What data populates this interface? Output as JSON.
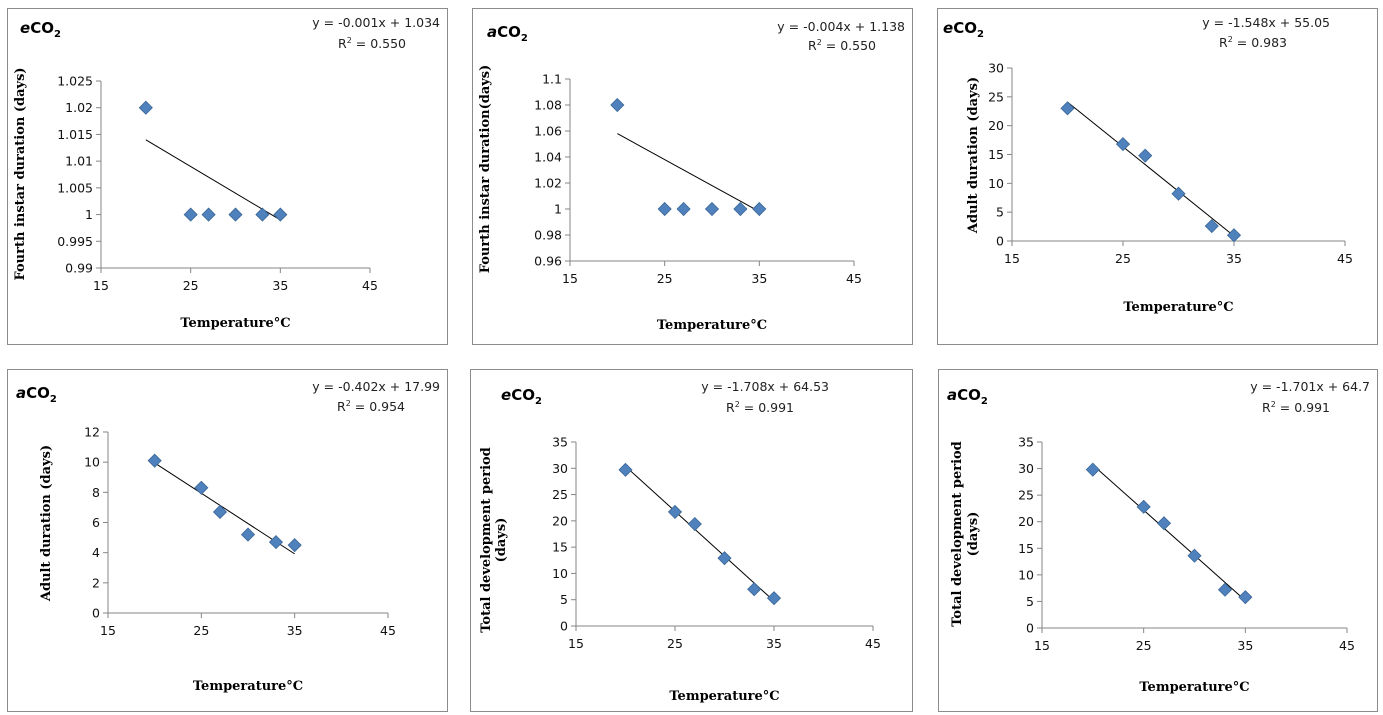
{
  "chart_data": [
    {
      "type": "scatter",
      "title_prefix": "e",
      "title_main": "CO",
      "title_sub": "2",
      "equation": "y = -0.001x + 1.034",
      "r2_label": "R",
      "r2_sup": "2",
      "r2_value": " = 0.550",
      "xlabel": "Temperature°C",
      "ylabel": "Fourth instar duration (days)",
      "xlim": [
        15,
        45
      ],
      "ylim": [
        0.99,
        1.025
      ],
      "xticks": [
        15,
        25,
        35,
        45
      ],
      "xtick_labels": [
        "15",
        "25",
        "35",
        "45"
      ],
      "yticks": [
        0.99,
        0.995,
        1,
        1.005,
        1.01,
        1.015,
        1.02,
        1.025
      ],
      "ytick_labels": [
        "0.99",
        "0.995",
        "1",
        "1.005",
        "1.01",
        "1.015",
        "1.02",
        "1.025"
      ],
      "x": [
        20,
        25,
        27,
        30,
        33,
        35
      ],
      "y": [
        1.02,
        1,
        1,
        1,
        1,
        1
      ],
      "trend": {
        "slope": -0.001,
        "intercept": 1.034,
        "x_range": [
          20,
          35
        ]
      }
    },
    {
      "type": "scatter",
      "title_prefix": "a",
      "title_main": "CO",
      "title_sub": "2",
      "equation": "y = -0.004x + 1.138",
      "r2_label": "R",
      "r2_sup": "2",
      "r2_value": " = 0.550",
      "xlabel": "Temperature°C",
      "ylabel": "Fourth instar duration(days)",
      "xlim": [
        15,
        45
      ],
      "ylim": [
        0.96,
        1.1
      ],
      "xticks": [
        15,
        25,
        35,
        45
      ],
      "xtick_labels": [
        "15",
        "25",
        "35",
        "45"
      ],
      "yticks": [
        0.96,
        0.98,
        1,
        1.02,
        1.04,
        1.06,
        1.08,
        1.1
      ],
      "ytick_labels": [
        "0.96",
        "0.98",
        "1",
        "1.02",
        "1.04",
        "1.06",
        "1.08",
        "1.1"
      ],
      "x": [
        20,
        25,
        27,
        30,
        33,
        35
      ],
      "y": [
        1.08,
        1,
        1,
        1,
        1,
        1
      ],
      "trend": {
        "slope": -0.004,
        "intercept": 1.138,
        "x_range": [
          20,
          35
        ]
      }
    },
    {
      "type": "scatter",
      "title_prefix": "e",
      "title_main": "CO",
      "title_sub": "2",
      "equation": "y = -1.548x + 55.05",
      "r2_label": "R",
      "r2_sup": "2",
      "r2_value": " = 0.983",
      "xlabel": "Temperature°C",
      "ylabel": "Adult duration (days)",
      "xlim": [
        15,
        45
      ],
      "ylim": [
        0,
        30
      ],
      "xticks": [
        15,
        25,
        35,
        45
      ],
      "xtick_labels": [
        "15",
        "25",
        "35",
        "45"
      ],
      "yticks": [
        0,
        5,
        10,
        15,
        20,
        25,
        30
      ],
      "ytick_labels": [
        "0",
        "5",
        "10",
        "15",
        "20",
        "25",
        "30"
      ],
      "x": [
        20,
        25,
        27,
        30,
        33,
        35
      ],
      "y": [
        23,
        16.8,
        14.8,
        8.2,
        2.6,
        1
      ],
      "trend": {
        "slope": -1.548,
        "intercept": 55.05,
        "x_range": [
          20,
          35
        ]
      }
    },
    {
      "type": "scatter",
      "title_prefix": "a",
      "title_main": "CO",
      "title_sub": "2",
      "equation": "y = -0.402x + 17.99",
      "r2_label": "R",
      "r2_sup": "2",
      "r2_value": " = 0.954",
      "xlabel": "Temperature°C",
      "ylabel": "Adult duration (days)",
      "xlim": [
        15,
        45
      ],
      "ylim": [
        0,
        12
      ],
      "xticks": [
        15,
        25,
        35,
        45
      ],
      "xtick_labels": [
        "15",
        "25",
        "35",
        "45"
      ],
      "yticks": [
        0,
        2,
        4,
        6,
        8,
        10,
        12
      ],
      "ytick_labels": [
        "0",
        "2",
        "4",
        "6",
        "8",
        "10",
        "12"
      ],
      "x": [
        20,
        25,
        27,
        30,
        33,
        35
      ],
      "y": [
        10.1,
        8.3,
        6.7,
        5.2,
        4.7,
        4.5
      ],
      "trend": {
        "slope": -0.402,
        "intercept": 17.99,
        "x_range": [
          20,
          35
        ]
      }
    },
    {
      "type": "scatter",
      "title_prefix": "e",
      "title_main": "CO",
      "title_sub": "2",
      "equation": "y = -1.708x + 64.53",
      "r2_label": "R",
      "r2_sup": "2",
      "r2_value": " = 0.991",
      "xlabel": "Temperature°C",
      "ylabel": "Total development period",
      "ylabel2": "(days)",
      "xlim": [
        15,
        45
      ],
      "ylim": [
        0,
        35
      ],
      "xticks": [
        15,
        25,
        35,
        45
      ],
      "xtick_labels": [
        "15",
        "25",
        "35",
        "45"
      ],
      "yticks": [
        0,
        5,
        10,
        15,
        20,
        25,
        30,
        35
      ],
      "ytick_labels": [
        "0",
        "5",
        "10",
        "15",
        "20",
        "25",
        "30",
        "35"
      ],
      "x": [
        20,
        25,
        27,
        30,
        33,
        35
      ],
      "y": [
        29.7,
        21.7,
        19.4,
        12.9,
        7,
        5.3
      ],
      "trend": {
        "slope": -1.708,
        "intercept": 64.53,
        "x_range": [
          20,
          35
        ]
      }
    },
    {
      "type": "scatter",
      "title_prefix": "a",
      "title_main": "CO",
      "title_sub": "2",
      "equation": "y = -1.701x + 64.7",
      "r2_label": "R",
      "r2_sup": "2",
      "r2_value": " = 0.991",
      "xlabel": "Temperature°C",
      "ylabel": "Total development period",
      "ylabel2": "(days)",
      "xlim": [
        15,
        45
      ],
      "ylim": [
        0,
        35
      ],
      "xticks": [
        15,
        25,
        35,
        45
      ],
      "xtick_labels": [
        "15",
        "25",
        "35",
        "45"
      ],
      "yticks": [
        0,
        5,
        10,
        15,
        20,
        25,
        30,
        35
      ],
      "ytick_labels": [
        "0",
        "5",
        "10",
        "15",
        "20",
        "25",
        "30",
        "35"
      ],
      "x": [
        20,
        25,
        27,
        30,
        33,
        35
      ],
      "y": [
        29.8,
        22.8,
        19.7,
        13.6,
        7.2,
        5.8
      ],
      "trend": {
        "slope": -1.701,
        "intercept": 64.7,
        "x_range": [
          20,
          35
        ]
      }
    }
  ],
  "colors": {
    "marker": "#4f81bd",
    "marker_edge": "#3a6696",
    "trendline": "#000000",
    "axis": "#868686",
    "border": "#8c8c8c"
  }
}
